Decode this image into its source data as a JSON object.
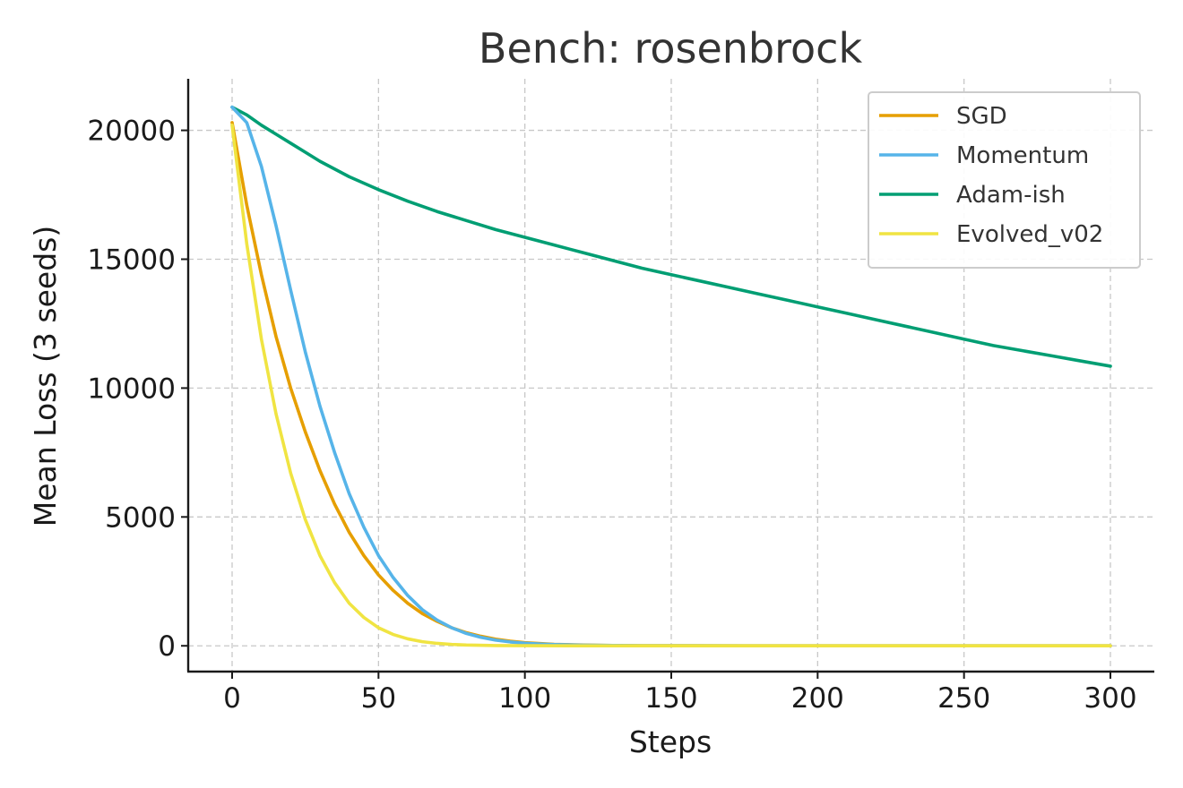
{
  "chart_data": {
    "type": "line",
    "title": "Bench: rosenbrock",
    "xlabel": "Steps",
    "ylabel": "Mean Loss (3 seeds)",
    "xlim": [
      -15,
      315
    ],
    "ylim": [
      -1000,
      22000
    ],
    "xticks": [
      0,
      50,
      100,
      150,
      200,
      250,
      300
    ],
    "yticks": [
      0,
      5000,
      10000,
      15000,
      20000
    ],
    "grid": true,
    "legend_position": "top-right",
    "series": [
      {
        "name": "SGD",
        "color": "#E69F00",
        "x": [
          0,
          5,
          10,
          15,
          20,
          25,
          30,
          35,
          40,
          45,
          50,
          55,
          60,
          65,
          70,
          75,
          80,
          85,
          90,
          95,
          100,
          110,
          120,
          130,
          140,
          150,
          175,
          200,
          225,
          250,
          275,
          300
        ],
        "y": [
          20300,
          17100,
          14400,
          12000,
          10000,
          8300,
          6800,
          5500,
          4400,
          3500,
          2750,
          2150,
          1650,
          1250,
          950,
          700,
          510,
          370,
          260,
          180,
          125,
          60,
          30,
          15,
          8,
          5,
          3,
          2,
          2,
          2,
          2,
          2
        ]
      },
      {
        "name": "Momentum",
        "color": "#56B4E9",
        "x": [
          0,
          5,
          10,
          15,
          20,
          25,
          30,
          35,
          40,
          45,
          50,
          55,
          60,
          65,
          70,
          75,
          80,
          85,
          90,
          95,
          100,
          105,
          110,
          120,
          130,
          140,
          150,
          175,
          200,
          225,
          250,
          275,
          300
        ],
        "y": [
          20900,
          20300,
          18600,
          16300,
          13800,
          11400,
          9300,
          7500,
          5900,
          4600,
          3500,
          2650,
          1950,
          1400,
          1000,
          700,
          480,
          330,
          220,
          150,
          100,
          70,
          48,
          25,
          14,
          8,
          5,
          3,
          2,
          2,
          2,
          2,
          2
        ]
      },
      {
        "name": "Adam-ish",
        "color": "#009E73",
        "x": [
          0,
          5,
          10,
          15,
          20,
          25,
          30,
          40,
          50,
          60,
          70,
          80,
          90,
          100,
          110,
          120,
          130,
          140,
          150,
          160,
          170,
          180,
          190,
          200,
          210,
          220,
          230,
          240,
          250,
          260,
          270,
          280,
          290,
          300
        ],
        "y": [
          20900,
          20600,
          20200,
          19850,
          19500,
          19150,
          18800,
          18200,
          17700,
          17250,
          16850,
          16500,
          16150,
          15850,
          15550,
          15250,
          14950,
          14650,
          14400,
          14150,
          13900,
          13650,
          13400,
          13150,
          12900,
          12650,
          12400,
          12150,
          11900,
          11650,
          11450,
          11250,
          11050,
          10850
        ]
      },
      {
        "name": "Evolved_v02",
        "color": "#F0E442",
        "x": [
          0,
          5,
          10,
          15,
          20,
          25,
          30,
          35,
          40,
          45,
          50,
          55,
          60,
          65,
          70,
          75,
          80,
          90,
          100,
          120,
          140,
          160,
          200,
          250,
          300
        ],
        "y": [
          20200,
          15600,
          11900,
          9000,
          6700,
          4900,
          3500,
          2450,
          1650,
          1100,
          700,
          440,
          270,
          160,
          95,
          55,
          30,
          10,
          4,
          2,
          1,
          1,
          1,
          1,
          1
        ]
      }
    ]
  }
}
